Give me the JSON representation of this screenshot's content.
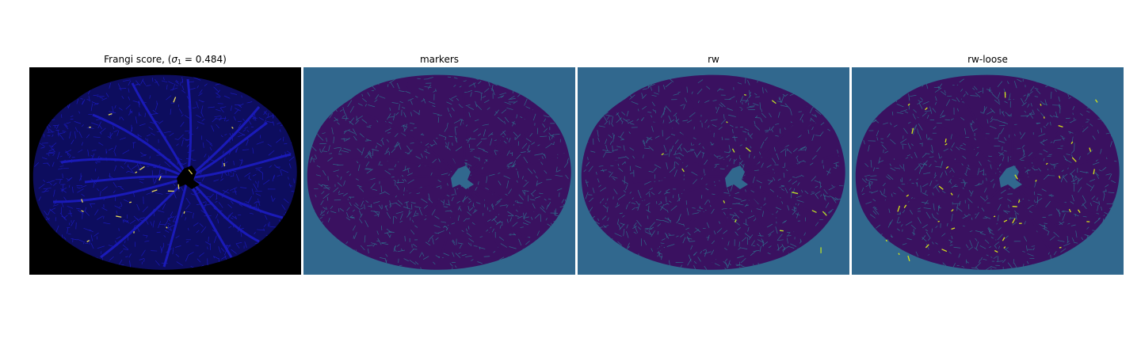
{
  "panels": [
    {
      "title_prefix": "Frangi score, (",
      "title_sigma": "σ",
      "title_sub": "1",
      "title_suffix": " = 0.484)",
      "background_color": "#000000",
      "region_color": "#0d0d5e",
      "vessel_color": "#1a1ab8",
      "highlight_color": "#e8d95a"
    },
    {
      "title": "markers",
      "background_color": "#31688e",
      "region_color": "#3a1160",
      "vessel_color": "#2f6a8a",
      "highlight_color": "#440154"
    },
    {
      "title": "rw",
      "background_color": "#31688e",
      "region_color": "#3a1160",
      "vessel_color": "#2f6a8a",
      "highlight_color": "#bddf26"
    },
    {
      "title": "rw-loose",
      "background_color": "#31688e",
      "region_color": "#3a1160",
      "vessel_color": "#2f6a8a",
      "highlight_color": "#d5e21a"
    }
  ]
}
